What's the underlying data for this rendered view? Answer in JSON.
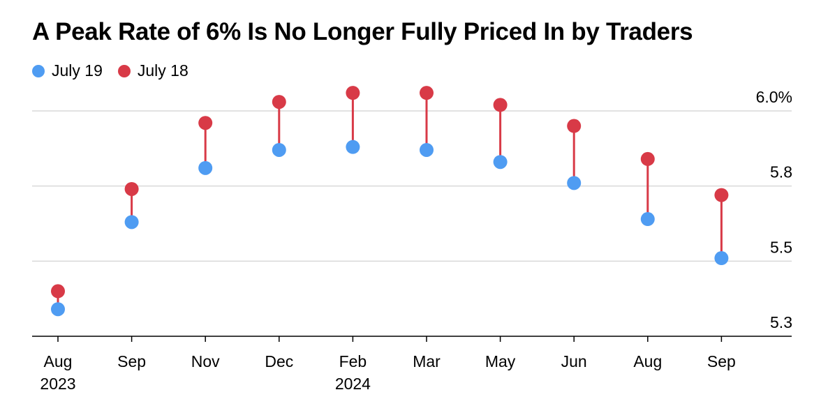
{
  "chart_data": {
    "type": "dot-range",
    "title": "A Peak Rate of 6% Is No Longer Fully Priced In by Traders",
    "categories": [
      "Aug",
      "Sep",
      "Nov",
      "Dec",
      "Feb",
      "Mar",
      "May",
      "Jun",
      "Aug",
      "Sep"
    ],
    "category_years": [
      "2023",
      "",
      "",
      "",
      "2024",
      "",
      "",
      "",
      "",
      ""
    ],
    "series": [
      {
        "name": "July 19",
        "color": "#4f9cf2",
        "values": [
          5.34,
          5.63,
          5.81,
          5.87,
          5.88,
          5.87,
          5.83,
          5.76,
          5.64,
          5.51
        ]
      },
      {
        "name": "July 18",
        "color": "#d83a47",
        "values": [
          5.4,
          5.74,
          5.96,
          6.03,
          6.06,
          6.06,
          6.02,
          5.95,
          5.84,
          5.72
        ]
      }
    ],
    "y_ticks": [
      {
        "value": 6.0,
        "label": "6.0%"
      },
      {
        "value": 5.75,
        "label": "5.8"
      },
      {
        "value": 5.5,
        "label": "5.5"
      },
      {
        "value": 5.25,
        "label": "5.3"
      }
    ],
    "ylim": [
      5.25,
      6.0
    ],
    "grid": true,
    "legend": "top-left",
    "connector_color": "#d83a47"
  }
}
